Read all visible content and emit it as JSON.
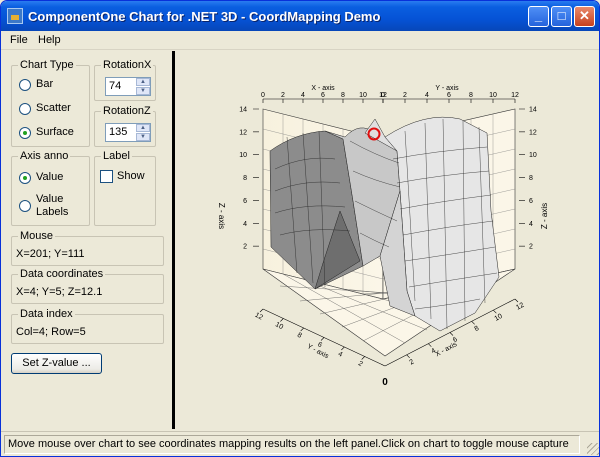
{
  "window": {
    "title": "ComponentOne Chart for .NET 3D - CoordMapping Demo",
    "minimize_symbol": "_",
    "maximize_symbol": "□",
    "close_symbol": "✕"
  },
  "menu": {
    "items": [
      "File",
      "Help"
    ]
  },
  "chart_type": {
    "label": "Chart Type",
    "options": [
      "Bar",
      "Scatter",
      "Surface"
    ],
    "selected": "Surface"
  },
  "rotation_x": {
    "label": "RotationX",
    "value": "74"
  },
  "rotation_z": {
    "label": "RotationZ",
    "value": "135"
  },
  "axis_anno": {
    "label": "Axis anno",
    "options": [
      "Value",
      "Value Labels"
    ],
    "selected": "Value"
  },
  "label_group": {
    "label": "Label",
    "show_label": "Show",
    "show_checked": false
  },
  "mouse": {
    "label": "Mouse",
    "value": "X=201; Y=111"
  },
  "data_coordinates": {
    "label": "Data coordinates",
    "value": "X=4; Y=5; Z=12.1"
  },
  "data_index": {
    "label": "Data index",
    "value": "Col=4; Row=5"
  },
  "set_z_button": "Set Z-value ...",
  "status": "Move mouse over chart to see coordinates mapping results on the left panel.Click on chart to toggle mouse capture",
  "chart_data": {
    "type": "surface",
    "x_axis_label": "X - axis",
    "y_axis_label": "Y - axis",
    "z_axis_label": "Z - axis",
    "z_ticks": [
      "0",
      "2",
      "4",
      "6",
      "8",
      "10",
      "12",
      "14"
    ],
    "x_ticks": [
      "0",
      "2",
      "4",
      "6",
      "8",
      "10",
      "12"
    ],
    "y_ticks": [
      "0",
      "2",
      "4",
      "6",
      "8",
      "10",
      "12"
    ],
    "xlim": [
      0,
      12
    ],
    "ylim": [
      0,
      12
    ],
    "zlim": [
      0,
      14
    ],
    "highlighted_point": {
      "x": 4,
      "y": 5,
      "z": 12.1
    },
    "colors": {
      "surface_light": "#e6e6e6",
      "surface_dark": "#8c8c8c",
      "highlight": "#e01010",
      "wall": "#fbf6e8"
    }
  }
}
